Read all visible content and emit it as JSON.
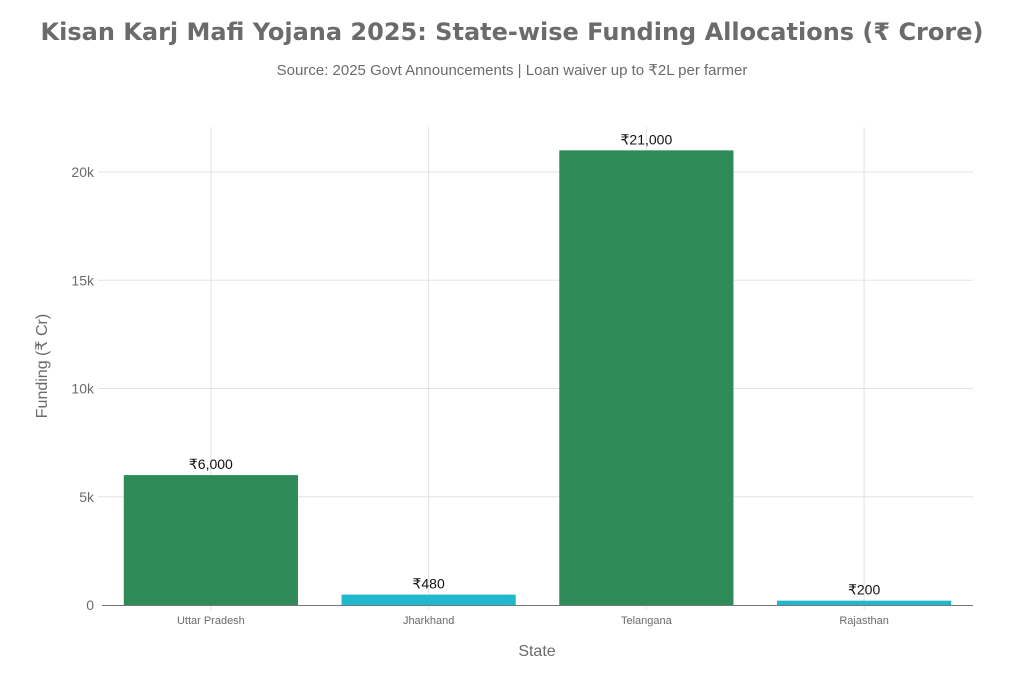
{
  "chart_data": {
    "type": "bar",
    "title": "Kisan Karj Mafi Yojana 2025: State-wise Funding Allocations (₹ Crore)",
    "subtitle": "Source: 2025 Govt Announcements | Loan waiver up to ₹2L per farmer",
    "xlabel": "State",
    "ylabel": "Funding (₹ Cr)",
    "categories": [
      "Uttar Pradesh",
      "Jharkhand",
      "Telangana",
      "Rajasthan"
    ],
    "values": [
      6000,
      480,
      21000,
      200
    ],
    "data_labels": [
      "₹6,000",
      "₹480",
      "₹21,000",
      "₹200"
    ],
    "bar_colors": [
      "#2E8B57",
      "#1FB8CD",
      "#2E8B57",
      "#1FB8CD"
    ],
    "yticks": [
      0,
      5000,
      10000,
      15000,
      20000
    ],
    "ytick_labels": [
      "0",
      "5k",
      "10k",
      "15k",
      "20k"
    ],
    "ylim": [
      0,
      22000
    ],
    "grid": true
  }
}
